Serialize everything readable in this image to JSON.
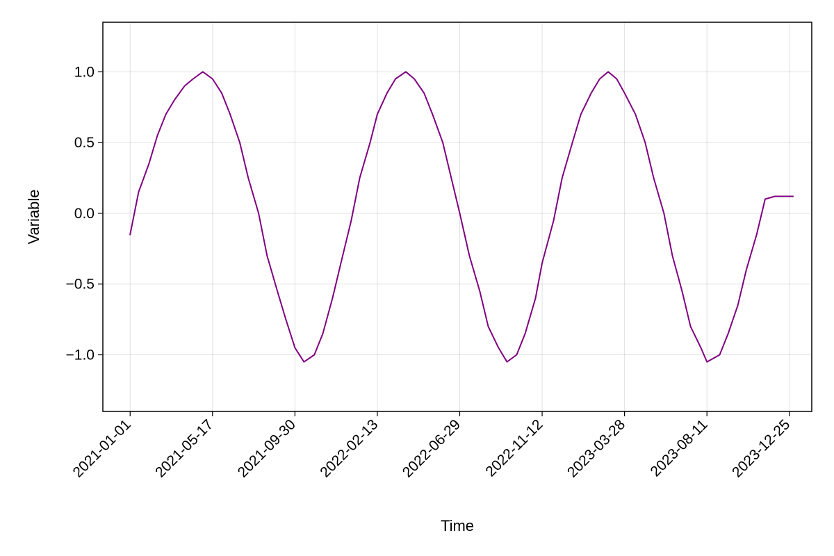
{
  "chart_data": {
    "type": "line",
    "xlabel": "Time",
    "ylabel": "Variable",
    "x_range": [
      "2021-01-01",
      "2024-01-31"
    ],
    "ylim": [
      -1.4,
      1.35
    ],
    "grid": true,
    "legend": "none",
    "line_color": "#800080",
    "x_ticks": [
      "2021-01-01",
      "2021-05-17",
      "2021-09-30",
      "2022-02-13",
      "2022-06-29",
      "2022-11-12",
      "2023-03-28",
      "2023-08-11",
      "2023-12-25"
    ],
    "y_ticks": [
      {
        "value": 1.0,
        "label": "1.0"
      },
      {
        "value": 0.5,
        "label": "0.5"
      },
      {
        "value": 0.0,
        "label": "0.0"
      },
      {
        "value": -0.5,
        "label": "−0.5"
      },
      {
        "value": -1.0,
        "label": "−1.0"
      }
    ],
    "series": [
      {
        "x": [
          "2021-01-01",
          "2021-01-15",
          "2021-02-01",
          "2021-02-15",
          "2021-03-01",
          "2021-03-15",
          "2021-04-01",
          "2021-04-15",
          "2021-05-01",
          "2021-05-17",
          "2021-06-01",
          "2021-06-15",
          "2021-07-01",
          "2021-07-15",
          "2021-08-01",
          "2021-08-15",
          "2021-09-01",
          "2021-09-15",
          "2021-09-30",
          "2021-10-15",
          "2021-11-01",
          "2021-11-15",
          "2021-12-01",
          "2021-12-15",
          "2022-01-01",
          "2022-01-15",
          "2022-02-01",
          "2022-02-13",
          "2022-03-01",
          "2022-03-15",
          "2022-04-01",
          "2022-04-15",
          "2022-05-01",
          "2022-05-15",
          "2022-06-01",
          "2022-06-15",
          "2022-06-29",
          "2022-07-15",
          "2022-08-01",
          "2022-08-15",
          "2022-09-01",
          "2022-09-15",
          "2022-10-01",
          "2022-10-15",
          "2022-11-01",
          "2022-11-12",
          "2022-12-01",
          "2022-12-15",
          "2023-01-01",
          "2023-01-15",
          "2023-02-01",
          "2023-02-15",
          "2023-03-01",
          "2023-03-15",
          "2023-03-28",
          "2023-04-15",
          "2023-05-01",
          "2023-05-15",
          "2023-06-01",
          "2023-06-15",
          "2023-07-01",
          "2023-07-15",
          "2023-08-01",
          "2023-08-11",
          "2023-09-01",
          "2023-09-15",
          "2023-10-01",
          "2023-10-15",
          "2023-11-01",
          "2023-11-15",
          "2023-12-01",
          "2023-12-15",
          "2023-12-31"
        ],
        "values": [
          -0.15,
          0.15,
          0.35,
          0.55,
          0.7,
          0.8,
          0.9,
          0.95,
          1.0,
          0.95,
          0.85,
          0.7,
          0.5,
          0.25,
          0.0,
          -0.3,
          -0.55,
          -0.75,
          -0.95,
          -1.05,
          -1.0,
          -0.85,
          -0.6,
          -0.35,
          -0.05,
          0.25,
          0.5,
          0.7,
          0.85,
          0.95,
          1.0,
          0.95,
          0.85,
          0.7,
          0.5,
          0.25,
          0.0,
          -0.3,
          -0.55,
          -0.8,
          -0.95,
          -1.05,
          -1.0,
          -0.85,
          -0.6,
          -0.35,
          -0.05,
          0.25,
          0.5,
          0.7,
          0.85,
          0.95,
          1.0,
          0.95,
          0.85,
          0.7,
          0.5,
          0.25,
          0.0,
          -0.3,
          -0.55,
          -0.8,
          -0.95,
          -1.05,
          -1.0,
          -0.85,
          -0.65,
          -0.4,
          -0.15,
          0.1,
          0.12,
          0.12,
          0.12
        ]
      }
    ]
  }
}
